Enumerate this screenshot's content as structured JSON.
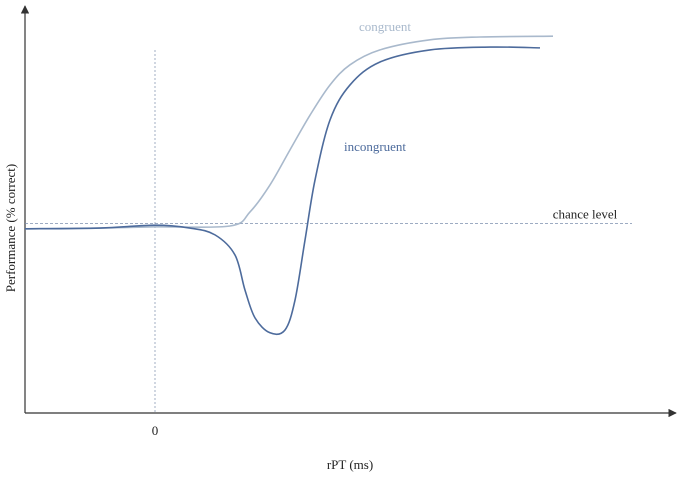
{
  "chart_data": {
    "type": "line",
    "xlabel": "rPT (ms)",
    "ylabel": "Performance (% correct)",
    "xlim": [
      -130,
      517
    ],
    "ylim": [
      0,
      100
    ],
    "xticks": [
      0
    ],
    "x": [
      -130,
      -55,
      0,
      35,
      60,
      80,
      90,
      100,
      115,
      130,
      140,
      150,
      160,
      175,
      195,
      225,
      275,
      335,
      385
    ],
    "series": [
      {
        "name": "congruent",
        "color": "#a9b9cc",
        "x": [
          -130,
          -55,
          0,
          75,
          95,
          115,
          135,
          155,
          175,
          195,
          225,
          275,
          325,
          398
        ],
        "values": [
          45.7,
          45.9,
          46.2,
          46.4,
          49.9,
          56.6,
          65.3,
          73.9,
          81.4,
          86.4,
          90.1,
          92.6,
          93.3,
          93.5
        ]
      },
      {
        "name": "incongruent",
        "color": "#4d6b9c",
        "values": [
          45.7,
          45.9,
          46.6,
          45.9,
          44.2,
          39.2,
          30.5,
          23.6,
          19.9,
          20.6,
          28.0,
          42.9,
          57.8,
          72.7,
          81.4,
          87.1,
          90.1,
          90.8,
          90.6
        ]
      }
    ],
    "chance_level": {
      "value": 47,
      "label": "chance level"
    }
  }
}
